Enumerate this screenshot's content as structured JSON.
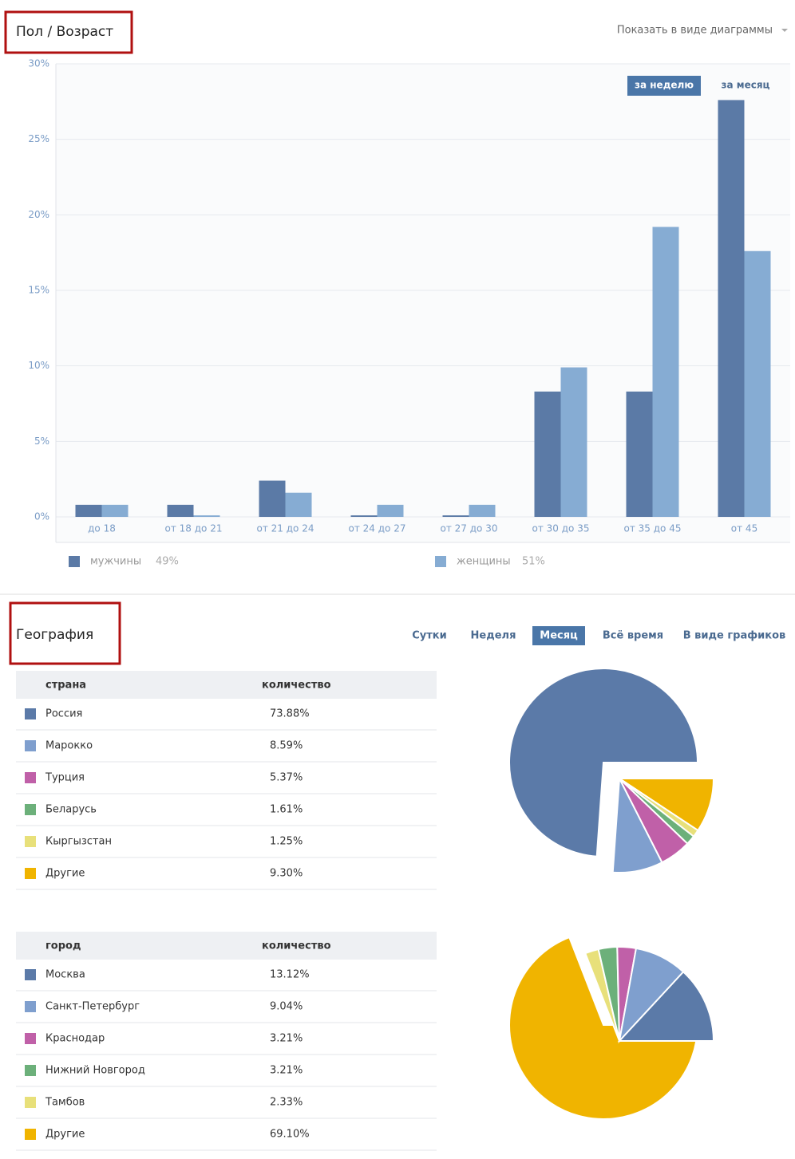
{
  "header": {
    "title": "Пол / Возраст",
    "view_toggle": "Показать в виде диаграммы"
  },
  "chart_data": [
    {
      "type": "bar",
      "categories": [
        "до 18",
        "от 18 до 21",
        "от 21 до 24",
        "от 24 до 27",
        "от 27 до 30",
        "от 30 до 35",
        "от 35 до 45",
        "от 45"
      ],
      "series": [
        {
          "name": "мужчины",
          "color": "#5b7aa6",
          "values": [
            0.8,
            0.8,
            2.4,
            0.1,
            0.1,
            8.3,
            8.3,
            27.6
          ],
          "share": 49,
          "share_label": "49%"
        },
        {
          "name": "женщины",
          "color": "#86acd3",
          "values": [
            0.8,
            0.1,
            1.6,
            0.8,
            0.8,
            9.9,
            19.2,
            17.6
          ],
          "share": 51,
          "share_label": "51%"
        }
      ],
      "ylim": [
        0,
        30
      ],
      "yticks": [
        {
          "value": 0,
          "label": "0%"
        },
        {
          "value": 5,
          "label": "5%"
        },
        {
          "value": 10,
          "label": "10%"
        },
        {
          "value": 15,
          "label": "15%"
        },
        {
          "value": 20,
          "label": "20%"
        },
        {
          "value": 25,
          "label": "25%"
        },
        {
          "value": 30,
          "label": "30%"
        }
      ],
      "grid": true,
      "period_buttons": [
        "за неделю",
        "за месяц"
      ],
      "active_period": 0
    },
    {
      "type": "pie",
      "column_headers": [
        "страна",
        "количество"
      ],
      "categories": [
        "Россия",
        "Марокко",
        "Турция",
        "Беларусь",
        "Кыргызстан",
        "Другие"
      ],
      "values": [
        73.88,
        8.59,
        5.37,
        1.61,
        1.25,
        9.3
      ],
      "value_labels": [
        "73.88%",
        "8.59%",
        "5.37%",
        "1.61%",
        "1.25%",
        "9.30%"
      ],
      "colors": [
        "#5b7aa8",
        "#7f9fce",
        "#c060a8",
        "#6cb07a",
        "#e8e07a",
        "#f0b400"
      ]
    },
    {
      "type": "pie",
      "column_headers": [
        "город",
        "количество"
      ],
      "categories": [
        "Москва",
        "Санкт-Петербург",
        "Краснодар",
        "Нижний Новгород",
        "Тамбов",
        "Другие"
      ],
      "values": [
        13.12,
        9.04,
        3.21,
        3.21,
        2.33,
        69.1
      ],
      "value_labels": [
        "13.12%",
        "9.04%",
        "3.21%",
        "3.21%",
        "2.33%",
        "69.10%"
      ],
      "colors": [
        "#5b7aa8",
        "#7f9fce",
        "#c060a8",
        "#6cb07a",
        "#e8e07a",
        "#f0b400"
      ]
    }
  ],
  "geography": {
    "title": "География",
    "tabs": [
      "Сутки",
      "Неделя",
      "Месяц",
      "Всё время",
      "В виде графиков"
    ],
    "active_tab": 2
  }
}
